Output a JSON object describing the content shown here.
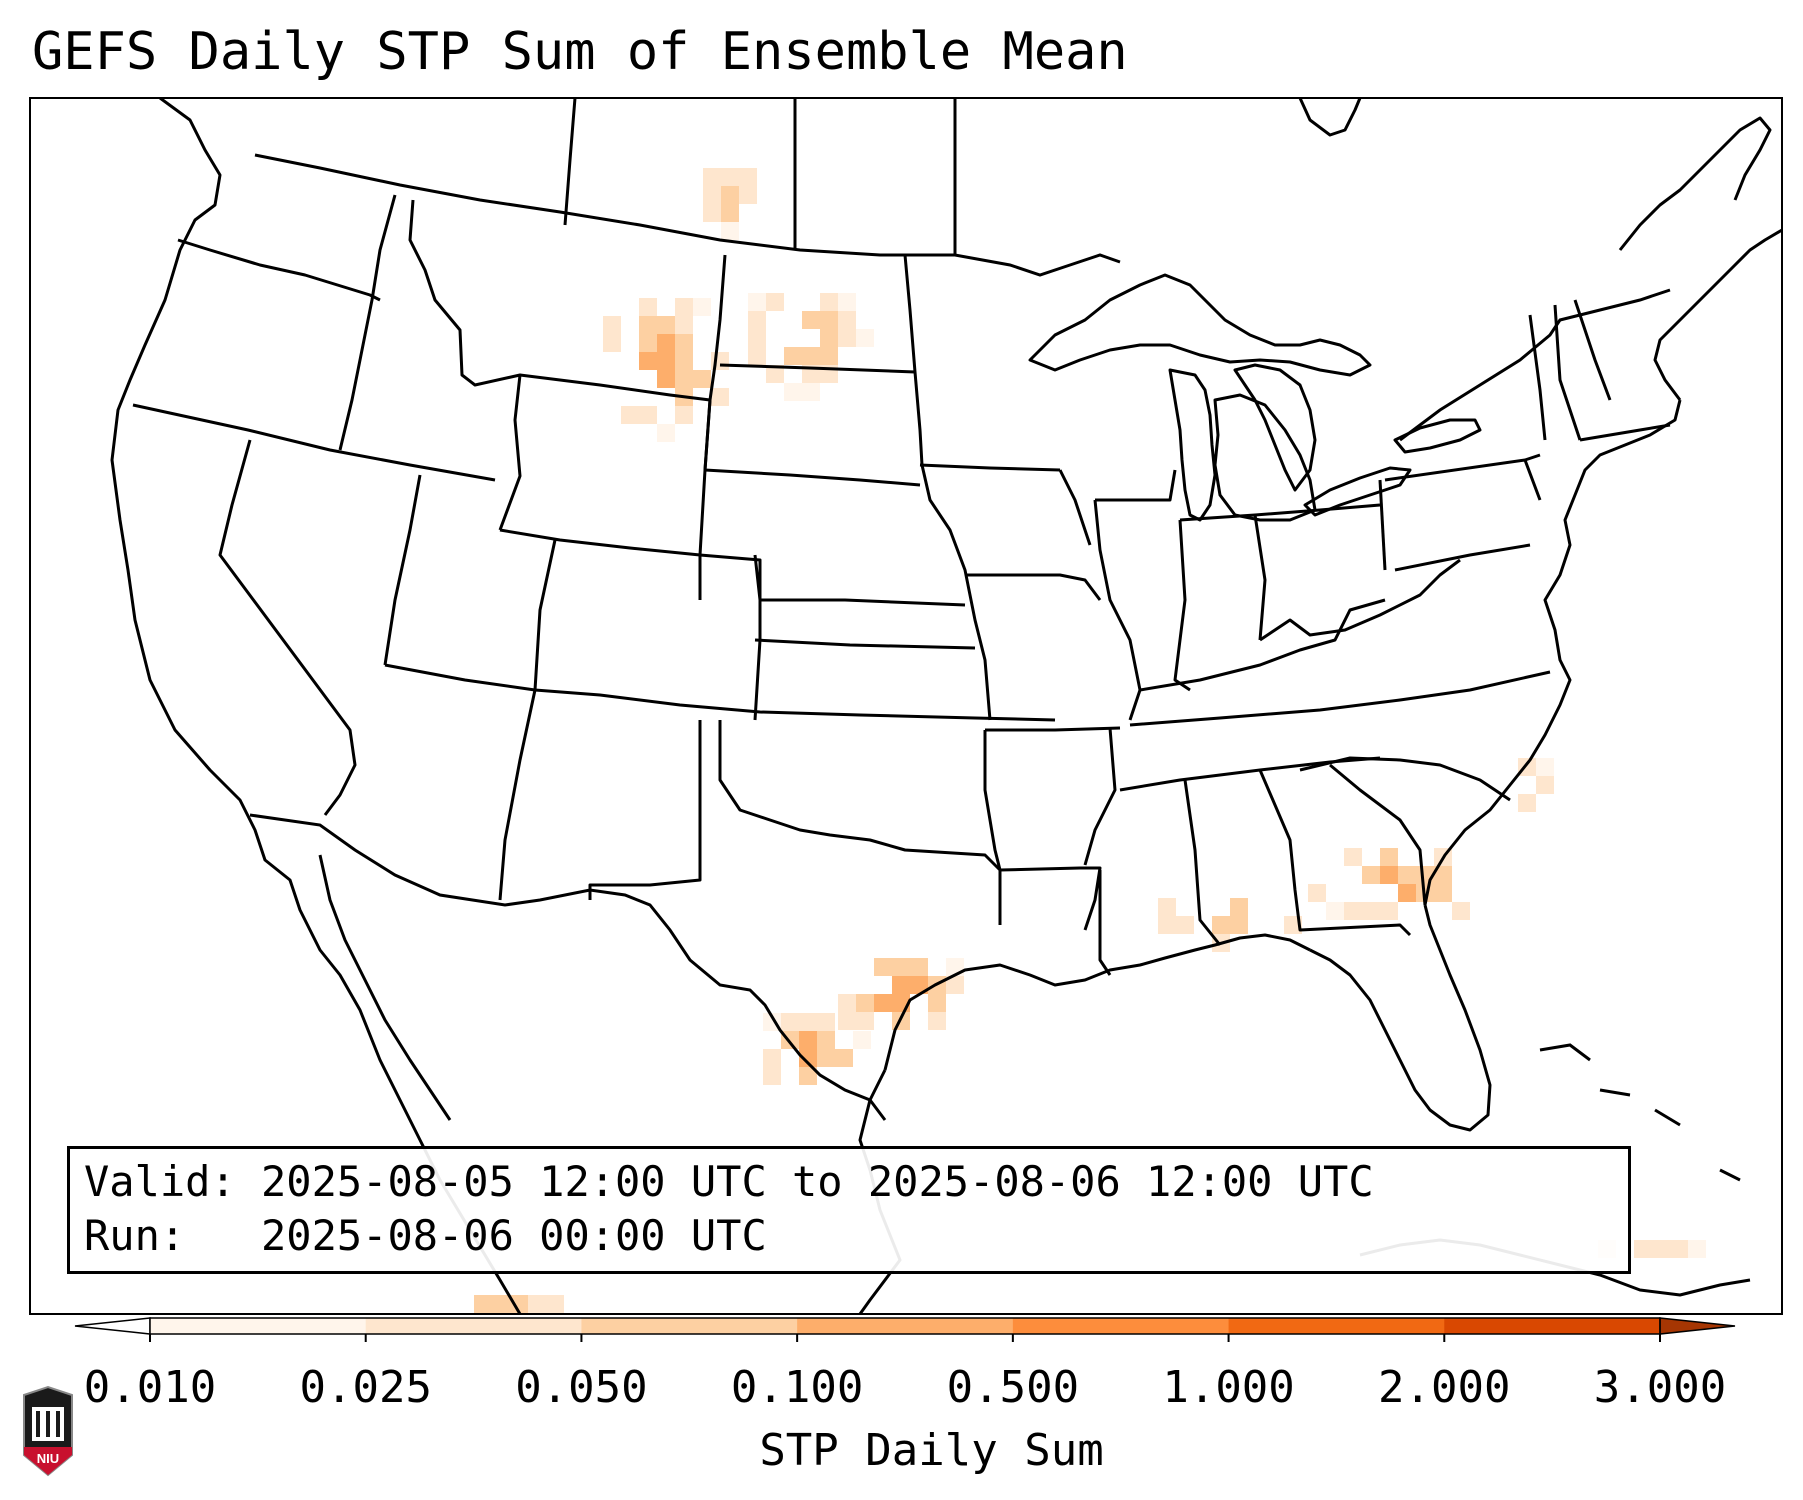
{
  "title": "GEFS Daily STP Sum of Ensemble Mean",
  "info": {
    "valid_label": "Valid:",
    "valid_value": "2025-08-05 12:00 UTC to 2025-08-06 12:00 UTC",
    "run_label": "Run:",
    "run_value": "2025-08-06 00:00 UTC"
  },
  "colorbar": {
    "label": "STP Daily Sum",
    "ticks": [
      "0.010",
      "0.025",
      "0.050",
      "0.100",
      "0.500",
      "1.000",
      "2.000",
      "3.000"
    ],
    "colors": [
      "#fff5eb",
      "#fee6ce",
      "#fdd0a2",
      "#fdae6b",
      "#fd8d3c",
      "#f16913",
      "#d94801",
      "#a63603"
    ],
    "extend": "both"
  },
  "map": {
    "projection": "Lambert Conformal Conic",
    "region": "Continental United States",
    "features": [
      "coastlines",
      "state-borders",
      "country-borders"
    ]
  },
  "logo": {
    "text": "NIU",
    "color": "#c8102e"
  }
}
